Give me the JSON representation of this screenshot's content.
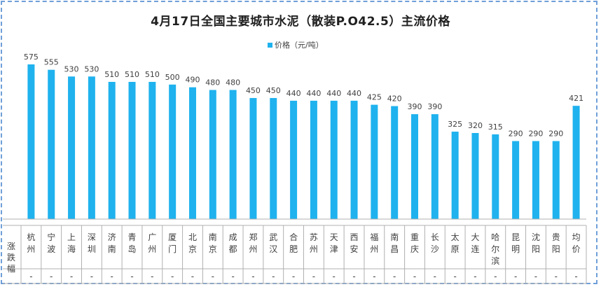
{
  "chart_data": {
    "type": "bar",
    "title": "4月17日全国主要城市水泥（散装P.O42.5）主流价格",
    "series": [
      {
        "name": "价格（元/吨）",
        "values": [
          575,
          555,
          530,
          530,
          510,
          510,
          510,
          500,
          490,
          480,
          480,
          450,
          450,
          440,
          440,
          440,
          440,
          425,
          420,
          390,
          390,
          325,
          320,
          315,
          290,
          290,
          290,
          421
        ]
      }
    ],
    "categories": [
      "杭州",
      "宁波",
      "上海",
      "深圳",
      "济南",
      "青岛",
      "广州",
      "厦门",
      "北京",
      "南京",
      "成都",
      "郑州",
      "武汉",
      "合肥",
      "苏州",
      "天津",
      "西安",
      "福州",
      "南昌",
      "重庆",
      "长沙",
      "太原",
      "大连",
      "哈尔滨",
      "昆明",
      "沈阳",
      "贵阳",
      "均价"
    ],
    "change_row_label": "涨跌幅",
    "changes": [
      "-",
      "-",
      "-",
      "-",
      "-",
      "-",
      "-",
      "-",
      "-",
      "-",
      "-",
      "-",
      "-",
      "-",
      "-",
      "-",
      "-",
      "-",
      "-",
      "-",
      "-",
      "-",
      "-",
      "-",
      "-",
      "-",
      "-",
      "-"
    ],
    "ylim": [
      0,
      600
    ],
    "legend_position": "top-center",
    "grid": false,
    "bar_color": "#1fb2ee"
  }
}
